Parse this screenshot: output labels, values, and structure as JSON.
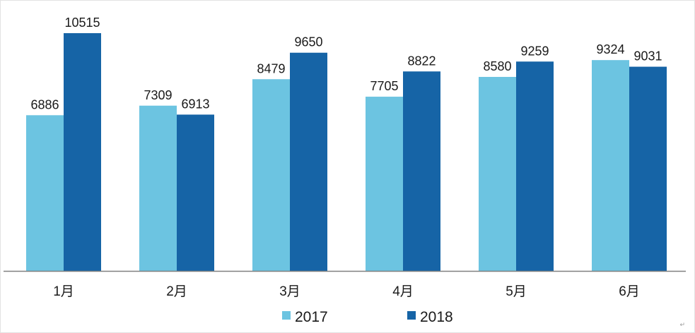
{
  "chart_data": {
    "type": "bar",
    "title": "",
    "xlabel": "",
    "ylabel": "",
    "categories": [
      "1月",
      "2月",
      "3月",
      "4月",
      "5月",
      "6月"
    ],
    "series": [
      {
        "name": "2017",
        "color": "#6cc4e1",
        "values": [
          6886,
          7309,
          8479,
          7705,
          8580,
          9324
        ]
      },
      {
        "name": "2018",
        "color": "#1664a6",
        "values": [
          10515,
          6913,
          9650,
          8822,
          9259,
          9031
        ]
      }
    ],
    "ylim": [
      0,
      10515
    ],
    "grid": false,
    "legend_position": "bottom",
    "data_labels": true
  },
  "corner_mark": "↵"
}
